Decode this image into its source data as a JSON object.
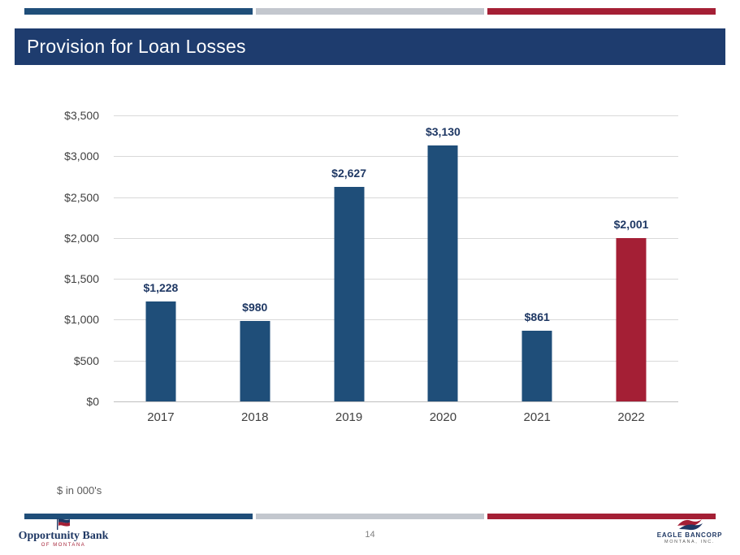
{
  "slide": {
    "title": "Provision for Loan Losses",
    "footnote": "$ in 000's",
    "page_number": "14"
  },
  "colors": {
    "header_navy": "#1E3C6E",
    "bar_blue": "#1F4E79",
    "bar_red": "#A41F35",
    "stripe_gray": "#C3C7CE",
    "gridline": "#D9D9D9",
    "axis_text": "#404040",
    "value_label": "#1F3864"
  },
  "chart_data": {
    "type": "bar",
    "title": "",
    "xlabel": "",
    "ylabel": "",
    "categories": [
      "2017",
      "2018",
      "2019",
      "2020",
      "2021",
      "2022"
    ],
    "values": [
      1228,
      980,
      2627,
      3130,
      861,
      2001
    ],
    "labels": [
      "$1,228",
      "$980",
      "$2,627",
      "$3,130",
      "$861",
      "$2,001"
    ],
    "bar_colors": [
      "#1F4E79",
      "#1F4E79",
      "#1F4E79",
      "#1F4E79",
      "#1F4E79",
      "#A41F35"
    ],
    "ylim": [
      0,
      3500
    ],
    "ytick_values": [
      0,
      500,
      1000,
      1500,
      2000,
      2500,
      3000,
      3500
    ],
    "yticks": [
      "$0",
      "$500",
      "$1,000",
      "$1,500",
      "$2,000",
      "$2,500",
      "$3,000",
      "$3,500"
    ],
    "grid": true,
    "legend": false,
    "units_note": "$ in 000's"
  },
  "footer": {
    "left_logo": {
      "line1": "Opportunity Bank",
      "line2": "OF MONTANA",
      "icon": "flag-icon"
    },
    "right_logo": {
      "line1": "EAGLE BANCORP",
      "line2": "MONTANA, INC.",
      "icon": "eagle-icon"
    }
  }
}
